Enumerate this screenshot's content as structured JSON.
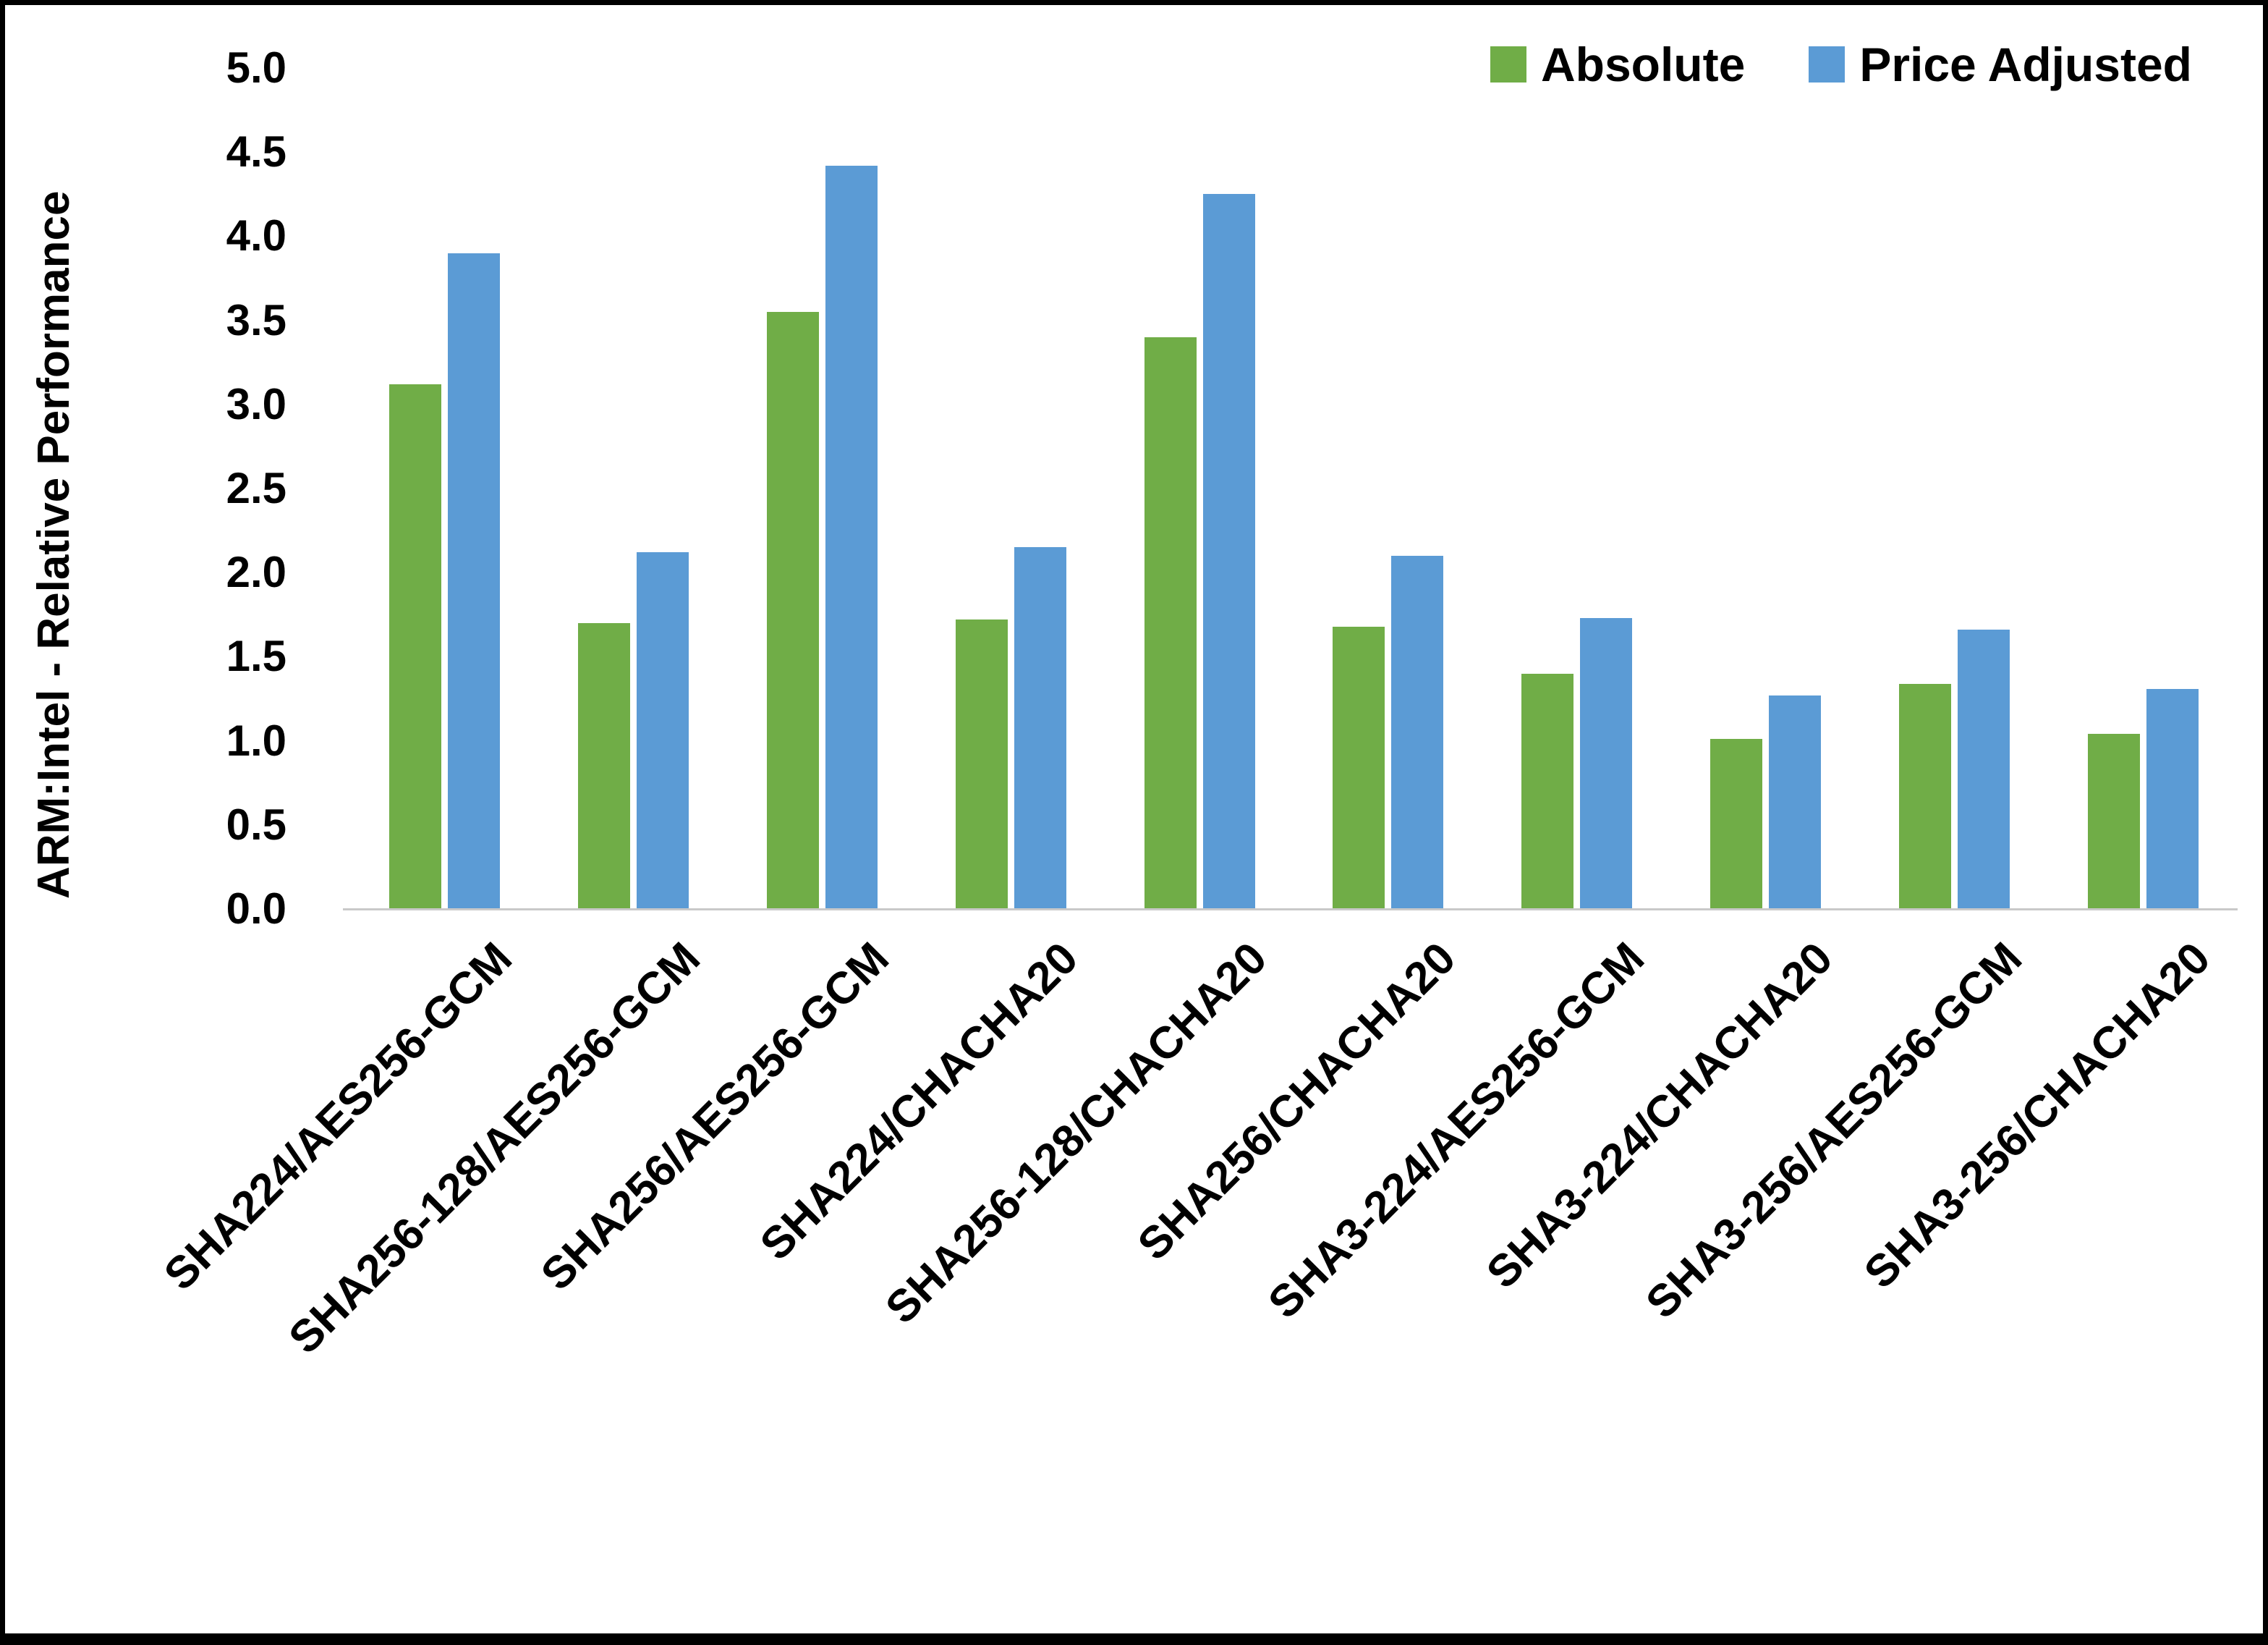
{
  "figure": {
    "background_color": "#FFFFFF",
    "border_color": "#000000"
  },
  "chart_data": {
    "type": "bar",
    "title": "",
    "xlabel": "",
    "ylabel": "ARM:Intel - Relative Performance",
    "ylim": [
      0,
      5
    ],
    "ytick_step": 0.5,
    "yticks": [
      "0.0",
      "0.5",
      "1.0",
      "1.5",
      "2.0",
      "2.5",
      "3.0",
      "3.5",
      "4.0",
      "4.5",
      "5.0"
    ],
    "grid": false,
    "legend_position": "top-right",
    "axis_line_color": "#C9C9C9",
    "categories": [
      "SHA224/AES256-GCM",
      "SHA256-128/AES256-GCM",
      "SHA256/AES256-GCM",
      "SHA224/CHACHA20",
      "SHA256-128/CHACHA20",
      "SHA256/CHACHA20",
      "SHA3-224/AES256-GCM",
      "SHA3-224/CHACHA20",
      "SHA3-256/AES256-GCM",
      "SHA3-256/CHACHA20"
    ],
    "series": [
      {
        "name": "Absolute",
        "color": "#70AD47",
        "values": [
          3.12,
          1.7,
          3.55,
          1.72,
          3.4,
          1.68,
          1.4,
          1.01,
          1.34,
          1.04
        ]
      },
      {
        "name": "Price Adjusted",
        "color": "#5B9BD5",
        "values": [
          3.9,
          2.12,
          4.42,
          2.15,
          4.25,
          2.1,
          1.73,
          1.27,
          1.66,
          1.31
        ]
      }
    ]
  }
}
